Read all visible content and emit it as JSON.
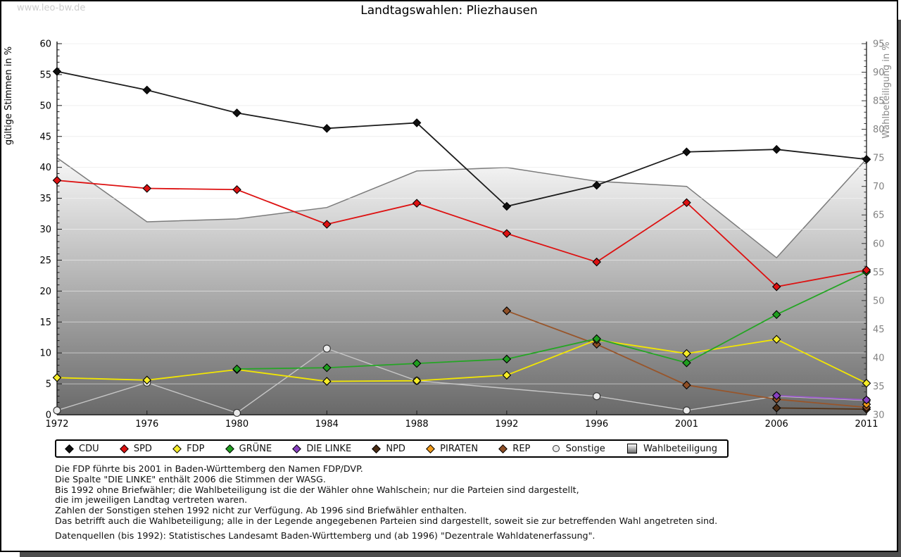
{
  "page": {
    "watermark": "www.leo-bw.de",
    "title": "Landtagswahlen: Pliezhausen"
  },
  "chart_data": {
    "type": "line",
    "title": "Landtagswahlen: Pliezhausen",
    "x_categories": [
      "1972",
      "1976",
      "1980",
      "1984",
      "1988",
      "1992",
      "1996",
      "2001",
      "2006",
      "2011"
    ],
    "left_axis": {
      "label": "gültige Stimmen in %",
      "min": 0,
      "max": 60,
      "tick_step": 5,
      "minor_step": 1
    },
    "right_axis": {
      "label": "Wahlbeteiligung in %",
      "min": 30,
      "max": 95,
      "tick_step": 5,
      "minor_step": 1
    },
    "grid": true,
    "legend_position": "bottom",
    "series": [
      {
        "name": "CDU",
        "axis": "left",
        "marker": "diamond",
        "color": "#1c1c1c",
        "fill": "#101010",
        "z": 9,
        "values": [
          55.5,
          52.5,
          48.8,
          46.3,
          47.2,
          33.7,
          37.1,
          42.5,
          42.9,
          41.3
        ]
      },
      {
        "name": "SPD",
        "axis": "left",
        "marker": "diamond",
        "color": "#dd1111",
        "fill": "#dd1111",
        "z": 8,
        "values": [
          37.9,
          36.6,
          36.4,
          30.8,
          34.2,
          29.3,
          24.7,
          34.3,
          20.7,
          23.4
        ]
      },
      {
        "name": "FDP",
        "axis": "left",
        "marker": "diamond",
        "color": "#f2e603",
        "fill": "#f6ec28",
        "z": 6,
        "values": [
          6.0,
          5.6,
          7.3,
          5.4,
          5.5,
          6.4,
          12.1,
          9.9,
          12.2,
          5.1
        ]
      },
      {
        "name": "GRÜNE",
        "axis": "left",
        "marker": "diamond",
        "color": "#25a525",
        "fill": "#1f9e1f",
        "z": 7,
        "values": [
          null,
          null,
          7.4,
          7.6,
          8.3,
          9.0,
          12.3,
          8.4,
          16.2,
          23.1
        ]
      },
      {
        "name": "DIE LINKE",
        "axis": "left",
        "marker": "diamond",
        "color": "#9a5ac9",
        "fill": "#8840c0",
        "z": 5,
        "values": [
          null,
          null,
          null,
          null,
          null,
          null,
          null,
          null,
          3.1,
          2.4
        ]
      },
      {
        "name": "NPD",
        "axis": "left",
        "marker": "diamond",
        "color": "#503016",
        "fill": "#4a2c14",
        "z": 2,
        "values": [
          null,
          null,
          null,
          null,
          null,
          null,
          null,
          null,
          1.1,
          0.9
        ]
      },
      {
        "name": "PIRATEN",
        "axis": "left",
        "marker": "diamond",
        "color": "#ee9416",
        "fill": "#f09a1a",
        "z": 4,
        "values": [
          null,
          null,
          null,
          null,
          null,
          null,
          null,
          null,
          null,
          1.7
        ]
      },
      {
        "name": "REP",
        "axis": "left",
        "marker": "diamond",
        "color": "#98552a",
        "fill": "#8f4f26",
        "z": 3,
        "values": [
          null,
          null,
          null,
          null,
          null,
          16.8,
          11.4,
          4.8,
          2.5,
          1.2
        ]
      },
      {
        "name": "Sonstige",
        "axis": "left",
        "marker": "circle",
        "color": "#c6c6c6",
        "fill": "#ebebeb",
        "stroke": "#333333",
        "width": 1.4,
        "z": 1,
        "values": [
          0.7,
          5.2,
          0.3,
          10.7,
          5.5,
          null,
          3.0,
          0.7,
          3.0,
          2.3
        ]
      },
      {
        "name": "Wahlbeteiligung",
        "axis": "right",
        "type": "area",
        "marker": "square-gradient",
        "color": "#7b7b7b",
        "gradient": [
          "#fbfbfb",
          "#696969"
        ],
        "z": 0,
        "values": [
          75.0,
          63.8,
          64.3,
          66.3,
          72.7,
          73.3,
          70.9,
          70.0,
          57.5,
          74.8
        ]
      }
    ]
  },
  "footnotes": {
    "lines": [
      "Die FDP führte bis 2001 in Baden-Württemberg den Namen FDP/DVP.",
      "Die Spalte \"DIE LINKE\" enthält 2006 die Stimmen der WASG.",
      "Bis 1992 ohne Briefwähler; die Wahlbeteiligung ist die der Wähler ohne Wahlschein; nur die Parteien sind dargestellt,",
      "die im jeweiligen Landtag vertreten waren.",
      "Zahlen der Sonstigen stehen 1992 nicht zur Verfügung. Ab 1996 sind Briefwähler enthalten.",
      "Das betrifft auch die Wahlbeteiligung; alle in der Legende angegebenen Parteien sind dargestellt, soweit sie zur betreffenden Wahl angetreten sind."
    ],
    "source": "Datenquellen (bis 1992): Statistisches Landesamt Baden-Württemberg und (ab 1996) \"Dezentrale Wahldatenerfassung\"."
  }
}
